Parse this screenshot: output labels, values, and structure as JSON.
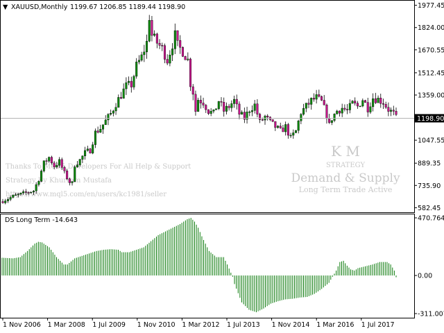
{
  "chart_data": [
    {
      "type": "candlestick",
      "symbol_label": "XAUUSD,Monthly",
      "ohlc_label": "1199.67 1206.85 1189.44 1198.90",
      "current_price_label": "1198.90",
      "current_price": 1198.9,
      "ylim": [
        570,
        1990
      ],
      "y_ticks": [
        {
          "value": 1977.45,
          "label": "1977.45"
        },
        {
          "value": 1824.0,
          "label": "1824.00"
        },
        {
          "value": 1670.55,
          "label": "1670.55"
        },
        {
          "value": 1512.45,
          "label": "1512.45"
        },
        {
          "value": 1359.0,
          "label": "1359.00"
        },
        {
          "value": 1047.55,
          "label": "1047.55"
        },
        {
          "value": 889.35,
          "label": "889.35"
        },
        {
          "value": 735.9,
          "label": "735.90"
        },
        {
          "value": 582.45,
          "label": "582.45"
        }
      ],
      "monthly_close": [
        {
          "t": 0,
          "c": 630
        },
        {
          "t": 4,
          "c": 660
        },
        {
          "t": 8,
          "c": 680
        },
        {
          "t": 12,
          "c": 700
        },
        {
          "t": 14,
          "c": 780
        },
        {
          "t": 16,
          "c": 890
        },
        {
          "t": 18,
          "c": 930
        },
        {
          "t": 20,
          "c": 870
        },
        {
          "t": 22,
          "c": 900
        },
        {
          "t": 24,
          "c": 820
        },
        {
          "t": 26,
          "c": 760
        },
        {
          "t": 27,
          "c": 750
        },
        {
          "t": 28,
          "c": 880
        },
        {
          "t": 30,
          "c": 910
        },
        {
          "t": 32,
          "c": 960
        },
        {
          "t": 34,
          "c": 980
        },
        {
          "t": 36,
          "c": 1100
        },
        {
          "t": 38,
          "c": 1130
        },
        {
          "t": 40,
          "c": 1180
        },
        {
          "t": 42,
          "c": 1230
        },
        {
          "t": 44,
          "c": 1300
        },
        {
          "t": 46,
          "c": 1360
        },
        {
          "t": 48,
          "c": 1420
        },
        {
          "t": 50,
          "c": 1430
        },
        {
          "t": 52,
          "c": 1560
        },
        {
          "t": 54,
          "c": 1620
        },
        {
          "t": 56,
          "c": 1720
        },
        {
          "t": 57,
          "c": 1900
        },
        {
          "t": 58,
          "c": 1770
        },
        {
          "t": 60,
          "c": 1720
        },
        {
          "t": 62,
          "c": 1680
        },
        {
          "t": 64,
          "c": 1600
        },
        {
          "t": 66,
          "c": 1710
        },
        {
          "t": 67,
          "c": 1770
        },
        {
          "t": 68,
          "c": 1700
        },
        {
          "t": 70,
          "c": 1660
        },
        {
          "t": 72,
          "c": 1600
        },
        {
          "t": 73,
          "c": 1440
        },
        {
          "t": 74,
          "c": 1380
        },
        {
          "t": 75,
          "c": 1250
        },
        {
          "t": 76,
          "c": 1330
        },
        {
          "t": 78,
          "c": 1310
        },
        {
          "t": 80,
          "c": 1250
        },
        {
          "t": 82,
          "c": 1230
        },
        {
          "t": 84,
          "c": 1320
        },
        {
          "t": 86,
          "c": 1250
        },
        {
          "t": 88,
          "c": 1280
        },
        {
          "t": 90,
          "c": 1320
        },
        {
          "t": 92,
          "c": 1230
        },
        {
          "t": 94,
          "c": 1200
        },
        {
          "t": 96,
          "c": 1260
        },
        {
          "t": 98,
          "c": 1290
        },
        {
          "t": 100,
          "c": 1170
        },
        {
          "t": 102,
          "c": 1210
        },
        {
          "t": 104,
          "c": 1170
        },
        {
          "t": 106,
          "c": 1140
        },
        {
          "t": 108,
          "c": 1110
        },
        {
          "t": 110,
          "c": 1140
        },
        {
          "t": 112,
          "c": 1060
        },
        {
          "t": 114,
          "c": 1110
        },
        {
          "t": 116,
          "c": 1240
        },
        {
          "t": 118,
          "c": 1280
        },
        {
          "t": 120,
          "c": 1320
        },
        {
          "t": 122,
          "c": 1340
        },
        {
          "t": 124,
          "c": 1310
        },
        {
          "t": 126,
          "c": 1220
        },
        {
          "t": 127,
          "c": 1150
        },
        {
          "t": 128,
          "c": 1200
        },
        {
          "t": 130,
          "c": 1250
        },
        {
          "t": 132,
          "c": 1270
        },
        {
          "t": 134,
          "c": 1250
        },
        {
          "t": 136,
          "c": 1300
        },
        {
          "t": 138,
          "c": 1280
        },
        {
          "t": 140,
          "c": 1330
        },
        {
          "t": 142,
          "c": 1270
        },
        {
          "t": 144,
          "c": 1340
        },
        {
          "t": 146,
          "c": 1330
        },
        {
          "t": 148,
          "c": 1310
        },
        {
          "t": 150,
          "c": 1260
        },
        {
          "t": 152,
          "c": 1230
        },
        {
          "t": 153,
          "c": 1198.9
        }
      ],
      "watermark": {
        "line1": "Thanks To MQL5 Developers For All Help & Support",
        "line2": "Strategy By Khurram Mustafa",
        "line3": "https://www.mql5.com/en/users/kc1981/seller",
        "logo_initials": "K M",
        "logo_strategy": "STRATEGY",
        "logo_title": "Demand & Supply",
        "logo_subtitle": "Long Term Trade Active"
      }
    },
    {
      "type": "bar",
      "indicator_label": "DS Long Term -14.643",
      "ylim": [
        -311.007,
        470.764
      ],
      "y_ticks": [
        {
          "value": 470.764,
          "label": "470.764"
        },
        {
          "value": 0.0,
          "label": "0.00"
        },
        {
          "value": -311.007,
          "label": "-311.007"
        }
      ],
      "histogram": [
        {
          "t": 0,
          "v": 145
        },
        {
          "t": 6,
          "v": 140
        },
        {
          "t": 10,
          "v": 150
        },
        {
          "t": 14,
          "v": 200
        },
        {
          "t": 18,
          "v": 260
        },
        {
          "t": 20,
          "v": 275
        },
        {
          "t": 22,
          "v": 270
        },
        {
          "t": 26,
          "v": 230
        },
        {
          "t": 30,
          "v": 150
        },
        {
          "t": 34,
          "v": 90
        },
        {
          "t": 36,
          "v": 90
        },
        {
          "t": 40,
          "v": 140
        },
        {
          "t": 44,
          "v": 160
        },
        {
          "t": 48,
          "v": 180
        },
        {
          "t": 52,
          "v": 200
        },
        {
          "t": 56,
          "v": 210
        },
        {
          "t": 60,
          "v": 215
        },
        {
          "t": 64,
          "v": 210
        },
        {
          "t": 66,
          "v": 190
        },
        {
          "t": 70,
          "v": 190
        },
        {
          "t": 74,
          "v": 210
        },
        {
          "t": 78,
          "v": 230
        },
        {
          "t": 82,
          "v": 280
        },
        {
          "t": 86,
          "v": 330
        },
        {
          "t": 90,
          "v": 360
        },
        {
          "t": 94,
          "v": 390
        },
        {
          "t": 98,
          "v": 420
        },
        {
          "t": 102,
          "v": 460
        },
        {
          "t": 104,
          "v": 470
        },
        {
          "t": 106,
          "v": 440
        },
        {
          "t": 108,
          "v": 390
        },
        {
          "t": 110,
          "v": 320
        },
        {
          "t": 114,
          "v": 200
        },
        {
          "t": 118,
          "v": 150
        },
        {
          "t": 122,
          "v": 150
        },
        {
          "t": 124,
          "v": 90
        },
        {
          "t": 127,
          "v": -10
        },
        {
          "t": 128,
          "v": -70
        },
        {
          "t": 132,
          "v": -220
        },
        {
          "t": 136,
          "v": -280
        },
        {
          "t": 140,
          "v": -300
        },
        {
          "t": 144,
          "v": -270
        },
        {
          "t": 148,
          "v": -230
        },
        {
          "t": 152,
          "v": -210
        },
        {
          "t": 156,
          "v": -195
        },
        {
          "t": 160,
          "v": -190
        },
        {
          "t": 164,
          "v": -180
        },
        {
          "t": 168,
          "v": -175
        },
        {
          "t": 172,
          "v": -150
        },
        {
          "t": 176,
          "v": -110
        },
        {
          "t": 180,
          "v": -60
        },
        {
          "t": 184,
          "v": 40
        },
        {
          "t": 186,
          "v": 110
        },
        {
          "t": 188,
          "v": 120
        },
        {
          "t": 190,
          "v": 80
        },
        {
          "t": 192,
          "v": 50
        },
        {
          "t": 194,
          "v": 40
        },
        {
          "t": 196,
          "v": 60
        },
        {
          "t": 200,
          "v": 75
        },
        {
          "t": 204,
          "v": 90
        },
        {
          "t": 208,
          "v": 110
        },
        {
          "t": 212,
          "v": 110
        },
        {
          "t": 214,
          "v": 90
        },
        {
          "t": 216,
          "v": 40
        },
        {
          "t": 217,
          "v": -14.643
        }
      ]
    }
  ],
  "x_axis_labels": [
    "1 Nov 2006",
    "1 Mar 2008",
    "1 Jul 2009",
    "1 Nov 2010",
    "1 Mar 2012",
    "1 Jul 2013",
    "1 Nov 2014",
    "1 Mar 2016",
    "1 Jul 2017"
  ]
}
